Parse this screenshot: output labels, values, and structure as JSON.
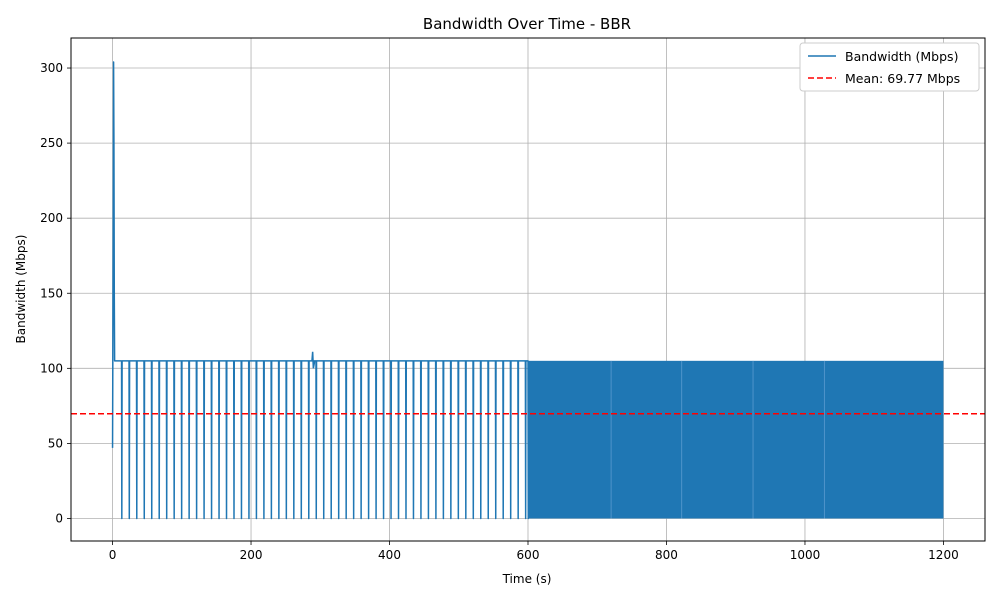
{
  "chart_data": {
    "type": "line",
    "title": "Bandwidth Over Time - BBR",
    "xlabel": "Time (s)",
    "ylabel": "Bandwidth (Mbps)",
    "xlim": [
      -60,
      1260
    ],
    "ylim": [
      -15,
      320
    ],
    "xticks": [
      0,
      200,
      400,
      600,
      800,
      1000,
      1200
    ],
    "yticks": [
      0,
      50,
      100,
      150,
      200,
      250,
      300
    ],
    "grid": true,
    "legend_position": "top-right",
    "series": [
      {
        "name": "Bandwidth (Mbps)",
        "color": "#1f77b4",
        "style": "solid",
        "description_points": {
          "startup": [
            [
              0,
              47
            ],
            [
              0.5,
              120
            ],
            [
              1,
              200
            ],
            [
              1.5,
              304
            ],
            [
              2,
              250
            ],
            [
              2.5,
              150
            ],
            [
              3,
              105
            ]
          ],
          "steady_level": 105,
          "drop_level": 0,
          "bump": [
            [
              288,
              105
            ],
            [
              289,
              111
            ],
            [
              290,
              100
            ],
            [
              292,
              105
            ]
          ],
          "sparse_drop_interval_s": 10,
          "sparse_region": [
            3,
            600
          ],
          "dense_region": [
            600,
            1200
          ],
          "end_time": 1200
        }
      },
      {
        "name": "Mean: 69.77 Mbps",
        "color": "#ff0000",
        "style": "dashed",
        "value": 69.77
      }
    ]
  }
}
